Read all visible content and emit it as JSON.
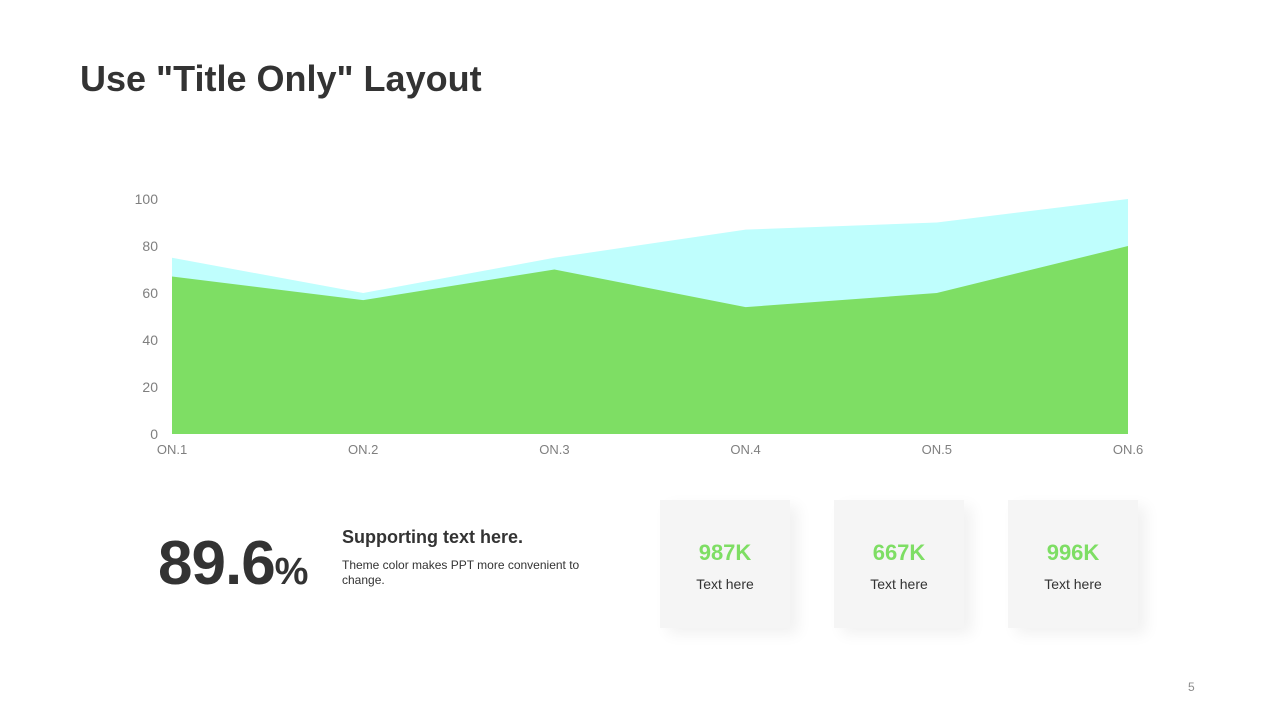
{
  "slide": {
    "title": "Use \"Title Only\" Layout",
    "page_number": "5"
  },
  "colors": {
    "accent_green": "#7ede64",
    "accent_cyan": "#bffefd",
    "text_dark": "#333333",
    "axis_text": "#7f7f7f"
  },
  "chart_data": {
    "type": "area",
    "categories": [
      "ON.1",
      "ON.2",
      "ON.3",
      "ON.4",
      "ON.5",
      "ON.6"
    ],
    "series": [
      {
        "values": [
          75,
          60,
          75,
          87,
          90,
          100
        ],
        "color": "#bffefd"
      },
      {
        "values": [
          67,
          57,
          70,
          54,
          60,
          80
        ],
        "color": "#7ede64"
      }
    ],
    "y_ticks": [
      0,
      20,
      40,
      60,
      80,
      100
    ],
    "ylim": [
      0,
      100
    ],
    "grid": false,
    "legend": "none"
  },
  "stat": {
    "value": "89.6",
    "unit": "%",
    "heading": "Supporting text here.",
    "body": "Theme color makes PPT more convenient to change."
  },
  "cards": [
    {
      "value": "987K",
      "label": "Text here"
    },
    {
      "value": "667K",
      "label": "Text here"
    },
    {
      "value": "996K",
      "label": "Text here"
    }
  ]
}
